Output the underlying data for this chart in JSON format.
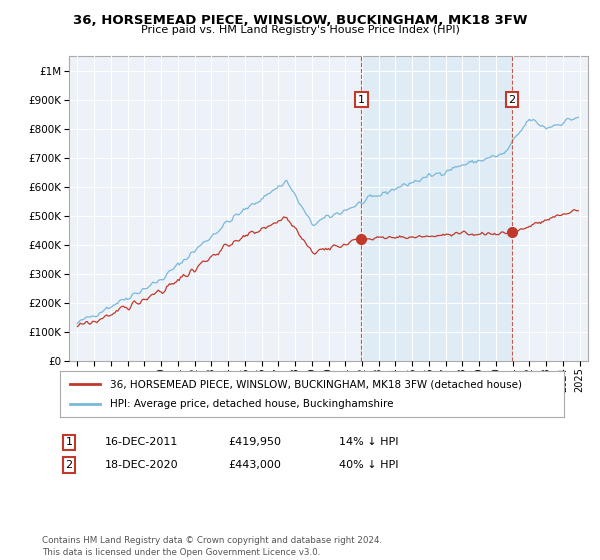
{
  "title": "36, HORSEMEAD PIECE, WINSLOW, BUCKINGHAM, MK18 3FW",
  "subtitle": "Price paid vs. HM Land Registry's House Price Index (HPI)",
  "legend_line1": "36, HORSEMEAD PIECE, WINSLOW, BUCKINGHAM, MK18 3FW (detached house)",
  "legend_line2": "HPI: Average price, detached house, Buckinghamshire",
  "annotation1_date": "16-DEC-2011",
  "annotation1_price": "£419,950",
  "annotation1_hpi": "14% ↓ HPI",
  "annotation1_year": 2011.96,
  "annotation1_value": 419950,
  "annotation2_date": "18-DEC-2020",
  "annotation2_price": "£443,000",
  "annotation2_hpi": "40% ↓ HPI",
  "annotation2_year": 2020.96,
  "annotation2_value": 443000,
  "footnote": "Contains HM Land Registry data © Crown copyright and database right 2024.\nThis data is licensed under the Open Government Licence v3.0.",
  "hpi_color": "#7ab8d9",
  "hpi_fill_color": "#daeaf4",
  "price_color": "#c0392b",
  "background_color": "#edf2f9",
  "grid_color": "#ffffff",
  "ylim": [
    0,
    1050000
  ],
  "xlim_start": 1994.5,
  "xlim_end": 2025.5,
  "yticks": [
    0,
    100000,
    200000,
    300000,
    400000,
    500000,
    600000,
    700000,
    800000,
    900000,
    1000000
  ]
}
